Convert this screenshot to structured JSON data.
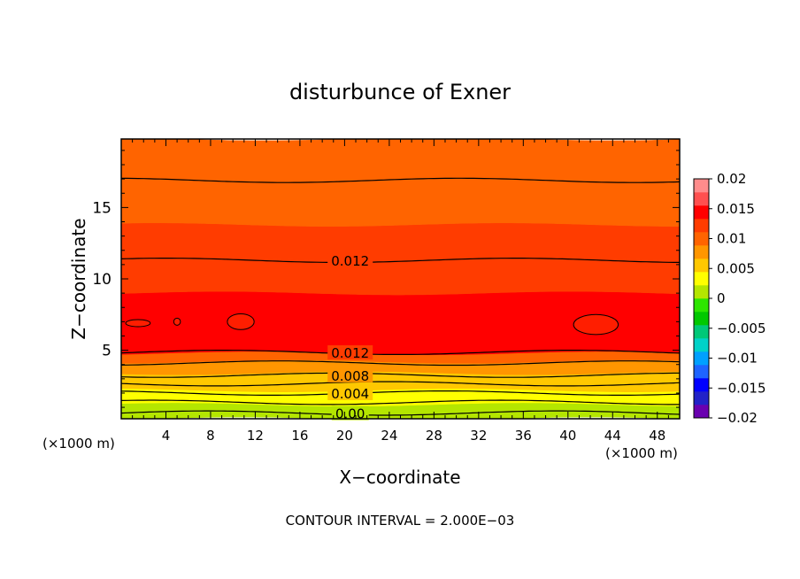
{
  "chart_data": {
    "type": "heatmap",
    "title": "disturbunce of Exner",
    "xlabel": "X−coordinate",
    "ylabel": "Z−coordinate",
    "x_unit_label": "(×1000 m)",
    "z_unit_label": "(×1000 m)",
    "xlim": [
      0,
      50
    ],
    "ylim": [
      0.2,
      19.8
    ],
    "x_ticks": [
      4,
      8,
      12,
      16,
      20,
      24,
      28,
      32,
      36,
      40,
      44,
      48
    ],
    "y_ticks": [
      5,
      10,
      15
    ],
    "contour_interval_label": "CONTOUR INTERVAL = 2.000E−03",
    "colorbar": {
      "labels": [
        "0.02",
        "0.015",
        "0.01",
        "0.005",
        "0",
        "−0.005",
        "−0.01",
        "−0.015",
        "−0.02"
      ],
      "min": -0.02,
      "max": 0.02,
      "bands": [
        "#6a00b0",
        "#2222c8",
        "#0000ff",
        "#1e64ff",
        "#00a0ff",
        "#00d2c8",
        "#00c878",
        "#00c800",
        "#2de600",
        "#b4e600",
        "#ffff00",
        "#ffc800",
        "#ff9600",
        "#ff6400",
        "#ff3c00",
        "#ff0000",
        "#ff5050",
        "#ff8c8c"
      ]
    },
    "field_levels": [
      {
        "z_range": [
          0.2,
          0.7
        ],
        "value": 0.0005
      },
      {
        "z_range": [
          0.7,
          1.2
        ],
        "value": 0.0015
      },
      {
        "z_range": [
          1.2,
          1.7
        ],
        "value": 0.0025
      },
      {
        "z_range": [
          1.7,
          2.2
        ],
        "value": 0.0035
      },
      {
        "z_range": [
          2.2,
          2.6
        ],
        "value": 0.0045
      },
      {
        "z_range": [
          2.6,
          3.0
        ],
        "value": 0.0055
      },
      {
        "z_range": [
          3.0,
          3.4
        ],
        "value": 0.0065
      },
      {
        "z_range": [
          3.4,
          3.8
        ],
        "value": 0.0075
      },
      {
        "z_range": [
          3.8,
          4.2
        ],
        "value": 0.0085
      },
      {
        "z_range": [
          4.2,
          4.8
        ],
        "value": 0.0105
      },
      {
        "z_range": [
          4.8,
          9.0
        ],
        "value": 0.0135
      },
      {
        "z_range": [
          9.0,
          11.4
        ],
        "value": 0.0125
      },
      {
        "z_range": [
          11.4,
          13.8
        ],
        "value": 0.0115
      },
      {
        "z_range": [
          13.8,
          17.0
        ],
        "value": 0.0105
      },
      {
        "z_range": [
          17.0,
          19.8
        ],
        "value": 0.0095
      }
    ],
    "contours": [
      {
        "level": 0.0,
        "z": 0.6,
        "label": "0.00"
      },
      {
        "level": 0.002,
        "z": 1.35,
        "label": ""
      },
      {
        "level": 0.004,
        "z": 2.0,
        "label": "0.004"
      },
      {
        "level": 0.006,
        "z": 2.65,
        "label": ""
      },
      {
        "level": 0.008,
        "z": 3.25,
        "label": "0.008"
      },
      {
        "level": 0.01,
        "z": 4.1,
        "label": ""
      },
      {
        "level": 0.012,
        "z": 4.85,
        "label": "0.012"
      },
      {
        "level": 0.012,
        "z": 11.3,
        "label": "0.012"
      },
      {
        "level": 0.01,
        "z": 16.9,
        "label": ""
      }
    ],
    "closed_contours": [
      {
        "x": 1.5,
        "z": 6.9,
        "rx": 1.1,
        "rz": 0.25
      },
      {
        "x": 5.0,
        "z": 7.0,
        "rx": 0.3,
        "rz": 0.25
      },
      {
        "x": 10.7,
        "z": 7.0,
        "rx": 1.2,
        "rz": 0.55
      },
      {
        "x": 42.5,
        "z": 6.8,
        "rx": 2.0,
        "rz": 0.7
      }
    ]
  }
}
